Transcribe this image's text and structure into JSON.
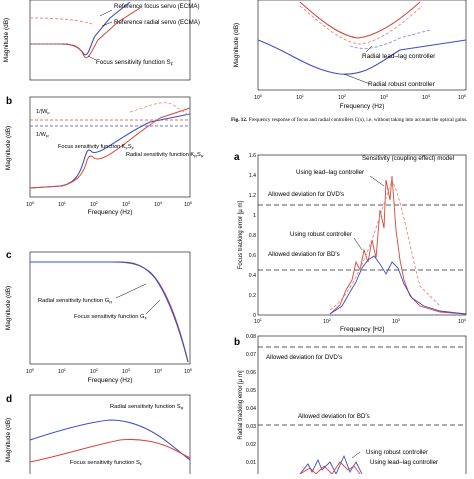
{
  "figure": {
    "panels": {
      "a_top": {
        "ylabel": "Magnitude (dB)",
        "labels": {
          "focus": "Reference focus servo (ECMA)",
          "radial": "Reference radial servo (ECMA)",
          "sens": "Focus sensitivity function S",
          "sens_sub": "F"
        }
      },
      "b": {
        "letter": "b",
        "ylabel": "Magnitude (dB)",
        "xlabel": "Frequency (Hz)",
        "wf": "1/|W",
        "wf_sub": "F",
        "wr": "1/W",
        "wr_sub": "R",
        "focus_label": "Focus sensitivity function K",
        "focus_sub": "F",
        "focus_s": "S",
        "radial_label": "Radial sensitivity function K",
        "radial_sub": "R",
        "radial_s": "S",
        "xticks": [
          "10",
          "10",
          "10",
          "10",
          "10",
          "10"
        ],
        "xexp": [
          "0",
          "1",
          "2",
          "3",
          "4",
          "5"
        ]
      },
      "c": {
        "letter": "c",
        "ylabel": "Magnitude (dB)",
        "xlabel": "Frequency (Hz)",
        "radial_label": "Radial sensitivity function G",
        "radial_sub": "R",
        "focus_label": "Focus sensitivity function G",
        "focus_sub": "F",
        "xticks": [
          "10",
          "10",
          "10",
          "10",
          "10",
          "10"
        ],
        "xexp": [
          "0",
          "1",
          "2",
          "3",
          "4",
          "5"
        ]
      },
      "d": {
        "letter": "d",
        "ylabel": "Magnitude (dB)",
        "radial_label": "Radial sensitivity function S",
        "radial_sub": "R",
        "focus_label": "Focus sensitivity function S",
        "focus_sub": "F"
      },
      "r_top": {
        "ylabel": "Magnitude (dB)",
        "xlabel": "Frequency (Hz)",
        "leadlag": "Radial lead–lag controller",
        "robust": "Radial robust controller",
        "xticks": [
          "10",
          "10",
          "10",
          "10",
          "10",
          "10"
        ],
        "xexp": [
          "0",
          "1",
          "2",
          "3",
          "4",
          "5"
        ]
      },
      "a2": {
        "letter": "a",
        "ylabel": "Focus tracking error [µ m]",
        "xlabel": "Frequency [Hz]",
        "yticks": [
          "1.6",
          "1.4",
          "1.2",
          "1",
          "0.8",
          "0.6",
          "0.4",
          "0.2",
          "0"
        ],
        "xticks": [
          "10",
          "10",
          "10",
          "10"
        ],
        "xexp": [
          "1",
          "2",
          "3",
          "4"
        ],
        "sens_label": "Sensitivity (coupling effect) model",
        "leadlag": "Using lead–lag controller",
        "dvd": "Allowed deviation for DVD's",
        "robust": "Using robust controller",
        "bd": "Allowed deviation for BD's"
      },
      "b2": {
        "letter": "b",
        "ylabel": "Radial tracking error [µ m]",
        "yticks": [
          "0.08",
          "0.07",
          "0.06",
          "0.05",
          "0.04",
          "0.03",
          "0.02",
          "0.01"
        ],
        "dvd": "Allowed deviation for DVD's",
        "bd": "Allowed deviation for BD's",
        "robust": "Using robust controller",
        "leadlag": "Using lead–lag controller"
      }
    },
    "caption": {
      "label": "Fig. 12.",
      "text": "Frequency response of focus and radial controllers C(s), i.e. without taking into account the optical gains."
    },
    "colors": {
      "blue": "#3b4fc4",
      "red": "#d9463b",
      "dashed_red": "#e8897e",
      "dashed_blue": "#7f8de0"
    }
  }
}
